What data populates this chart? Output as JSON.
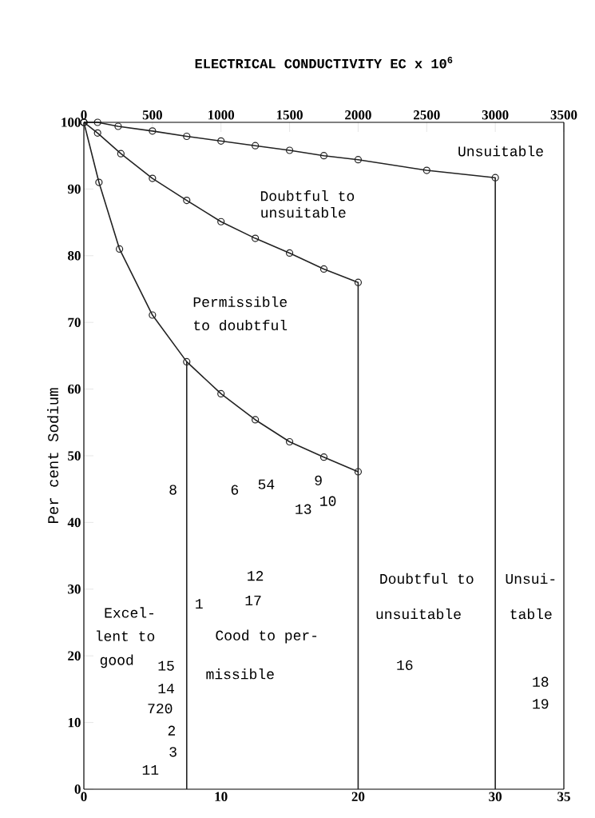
{
  "chart_data": {
    "type": "line",
    "title": "ELECTRICAL CONDUCTIVITY  EC x 10$^{6}$",
    "ylabel": "Per cent Sodium",
    "xlim": [
      0,
      35
    ],
    "xticks": [
      0,
      10,
      20,
      30,
      35
    ],
    "x2lim": [
      0,
      3500
    ],
    "x2ticks": [
      0,
      500,
      1000,
      1500,
      2000,
      2500,
      3000,
      3500
    ],
    "ylim": [
      0,
      100
    ],
    "yticks": [
      0,
      10,
      20,
      30,
      40,
      50,
      60,
      70,
      80,
      90,
      100
    ],
    "grid": false,
    "marker": "circle",
    "line_style": "solid",
    "series": [
      {
        "color": "#222222",
        "x": [
          0,
          1,
          2.5,
          5,
          7.5,
          10,
          12.5,
          15,
          17.5,
          20,
          25,
          30,
          30
        ],
        "values": [
          100,
          100,
          99.4,
          98.7,
          97.9,
          97.2,
          96.5,
          95.8,
          95.0,
          94.4,
          92.8,
          91.7,
          0
        ]
      },
      {
        "color": "#222222",
        "x": [
          0,
          1,
          2.7,
          5,
          7.5,
          10,
          12.5,
          15,
          17.5,
          20,
          20
        ],
        "values": [
          100,
          98.4,
          95.3,
          91.6,
          88.3,
          85.1,
          82.6,
          80.4,
          78.0,
          76.0,
          0
        ]
      },
      {
        "color": "#222222",
        "x": [
          0,
          1.1,
          2.6,
          5,
          7.5,
          10,
          12.5,
          15,
          17.5,
          20
        ],
        "values": [
          100,
          91.0,
          81.0,
          71.1,
          64.1,
          59.3,
          55.4,
          52.1,
          49.8,
          47.6
        ]
      },
      {
        "color": "#222222",
        "marker": "none",
        "x": [
          7.5,
          7.5
        ],
        "values": [
          0,
          64.1
        ]
      }
    ],
    "annotations": [
      "Unsuitable",
      "Doubtful to",
      "unsuitable",
      "Permissible",
      "to doubtful",
      "Excel-",
      "lent to",
      "good",
      "Cood to per-",
      "missible",
      "Doubtful to",
      "unsuitable",
      "Unsui-",
      "table",
      "8",
      "6",
      "54",
      "9",
      "13",
      "10",
      "12",
      "17",
      "1",
      "16",
      "15",
      "14",
      "720",
      "2",
      "3",
      "11",
      "18",
      "19"
    ]
  }
}
